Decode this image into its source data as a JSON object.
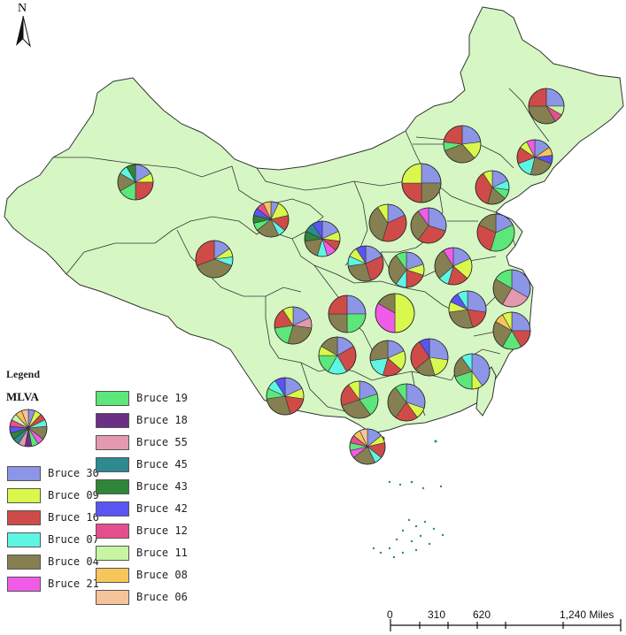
{
  "north_arrow": {
    "label": "N"
  },
  "legend": {
    "title": "Legend",
    "subtitle": "MLVA",
    "items": [
      {
        "label": "Bruce 30",
        "color": "#8c95e6"
      },
      {
        "label": "Bruce 09",
        "color": "#d8f94c"
      },
      {
        "label": "Bruce 16",
        "color": "#cf4b48"
      },
      {
        "label": "Bruce 07",
        "color": "#5ff5e3"
      },
      {
        "label": "Bruce 04",
        "color": "#857f52"
      },
      {
        "label": "Bruce 21",
        "color": "#f05ce8"
      },
      {
        "label": "Bruce 19",
        "color": "#5de67a"
      },
      {
        "label": "Bruce 18",
        "color": "#6b2f86"
      },
      {
        "label": "Bruce 55",
        "color": "#e39aae"
      },
      {
        "label": "Bruce 45",
        "color": "#2d8a91"
      },
      {
        "label": "Bruce 43",
        "color": "#2f8538"
      },
      {
        "label": "Bruce 42",
        "color": "#5a55f2"
      },
      {
        "label": "Bruce 12",
        "color": "#e64f8e"
      },
      {
        "label": "Bruce 11",
        "color": "#c8f5a2"
      },
      {
        "label": "Bruce 08",
        "color": "#f6c65a"
      },
      {
        "label": "Bruce 06",
        "color": "#f6c49a"
      }
    ]
  },
  "scale_bar": {
    "labels": [
      "0",
      "310",
      "620",
      "1,240 Miles"
    ]
  },
  "colors": {
    "land": "#d6f7c4",
    "border": "#333333"
  }
}
